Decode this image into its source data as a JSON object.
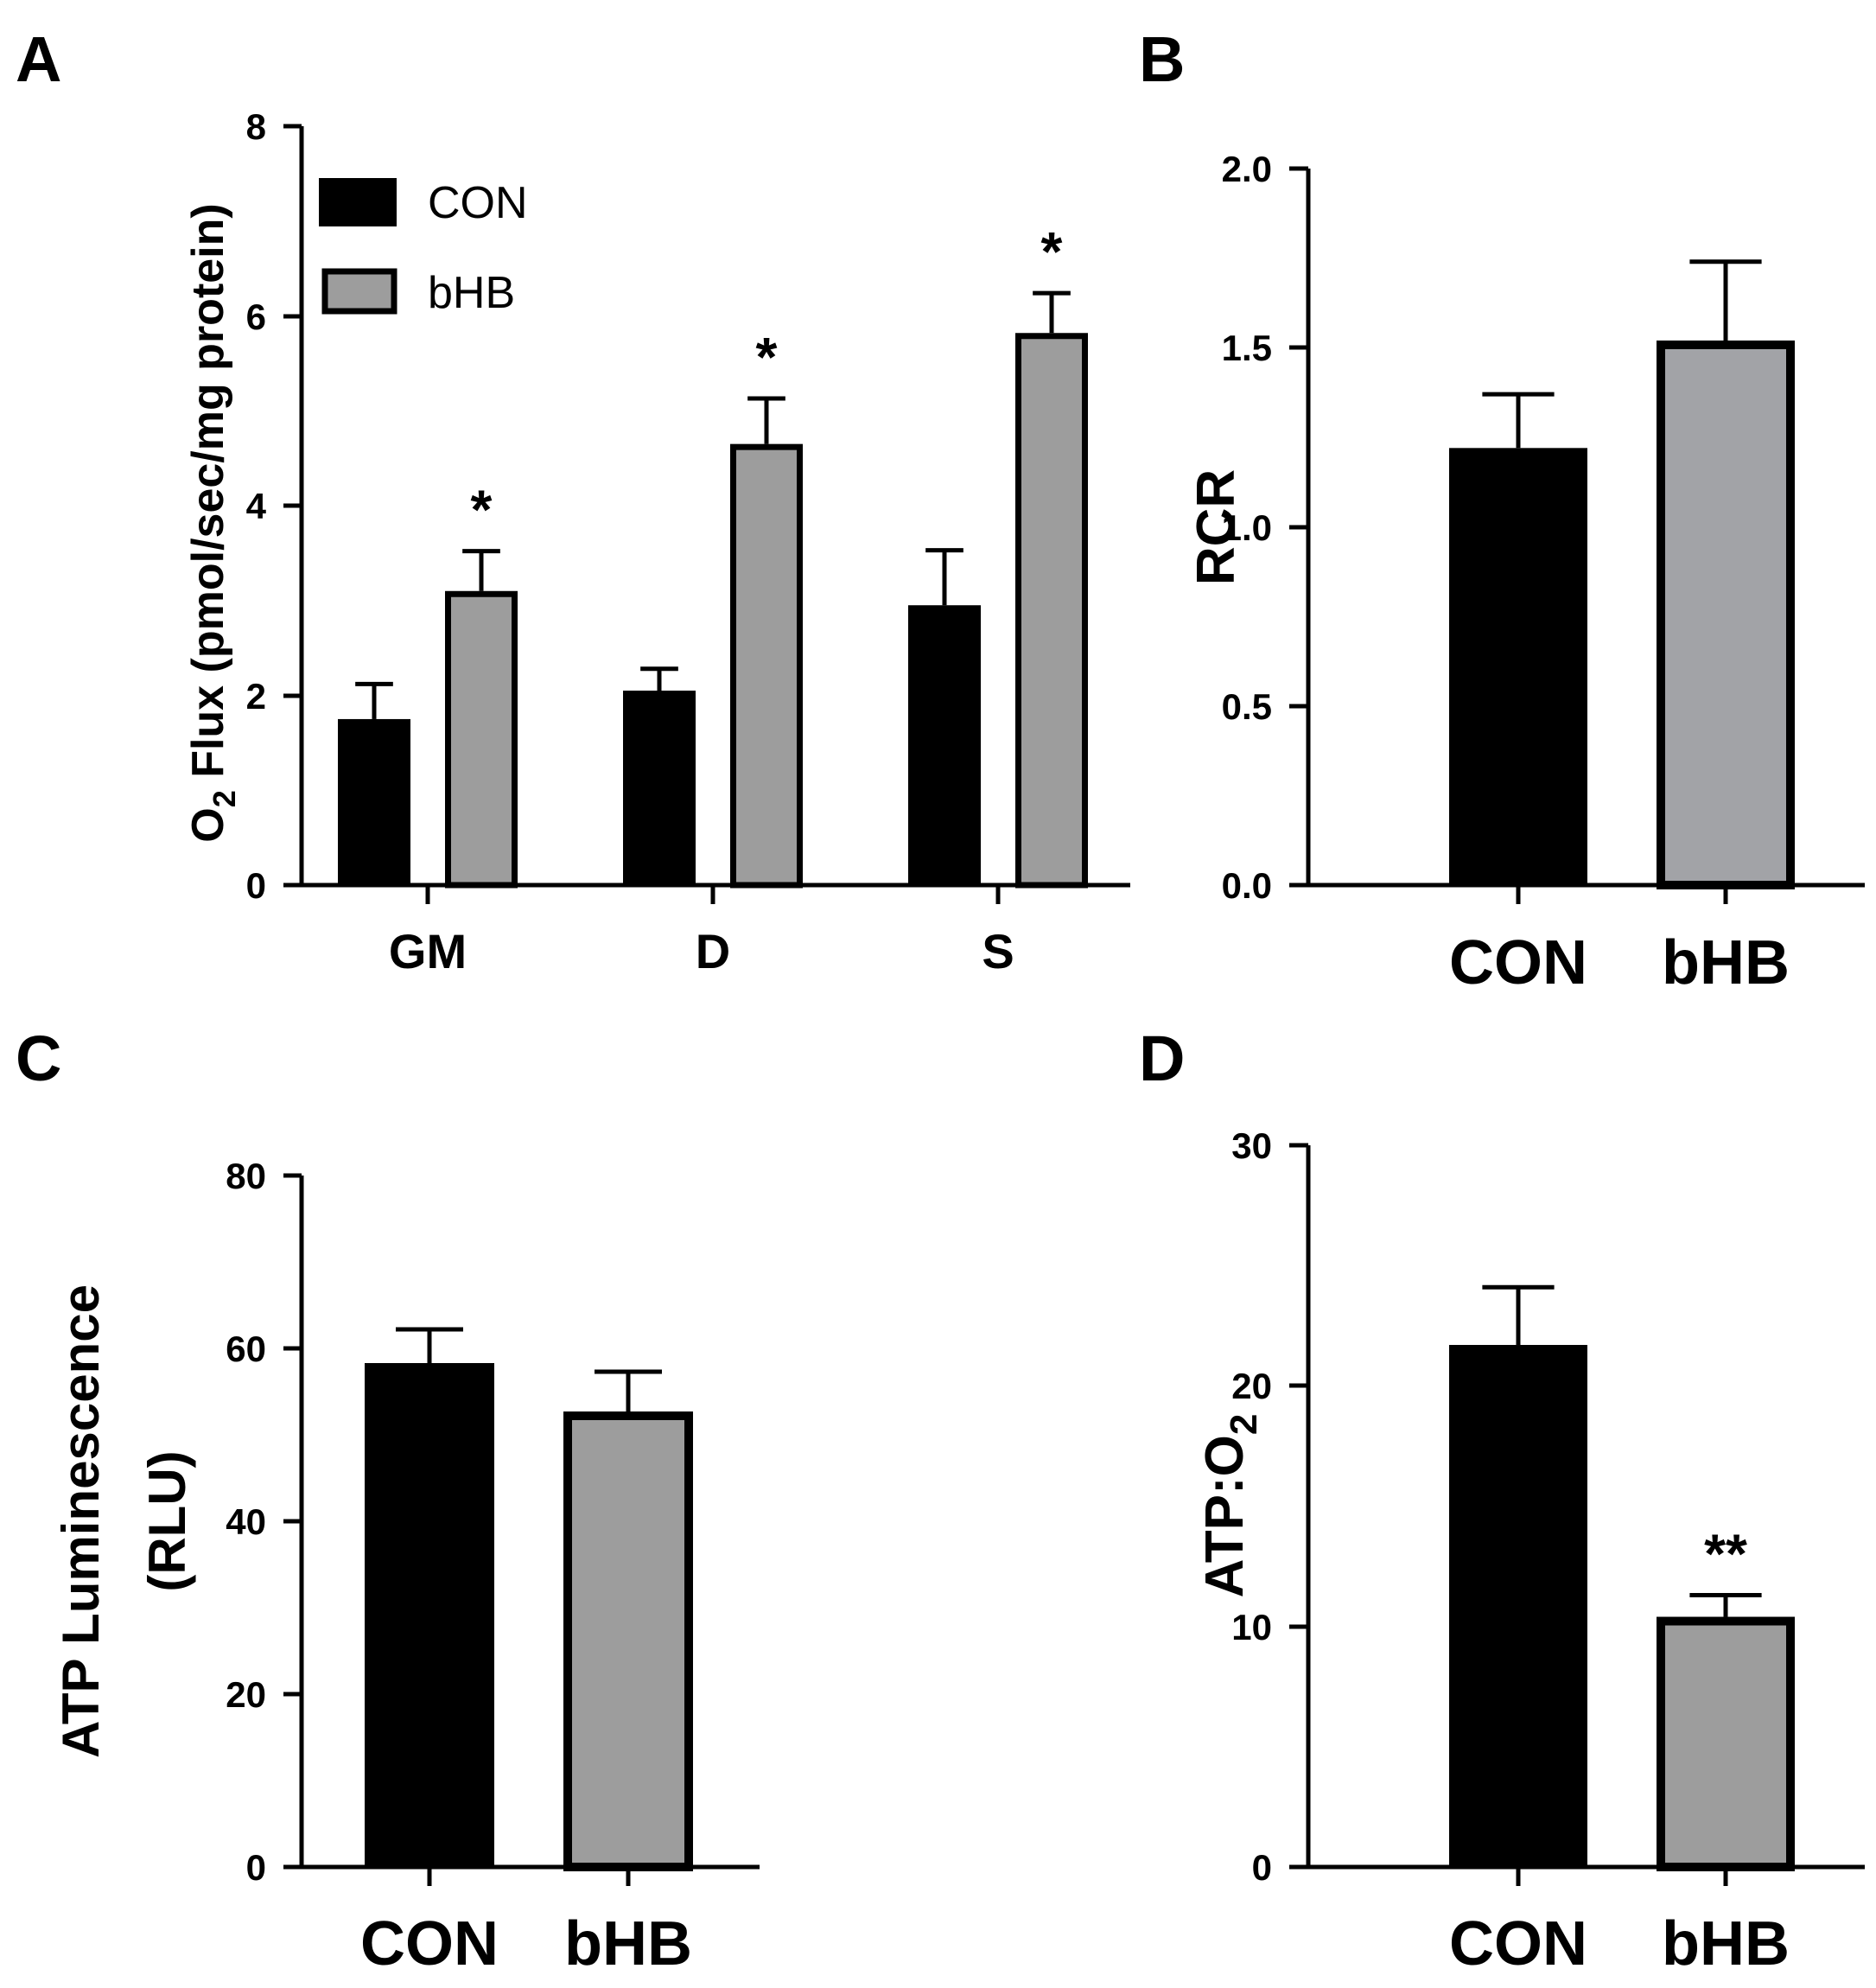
{
  "colors": {
    "con": "#000000",
    "bhb": "#9d9d9d",
    "bhb_b": "#a2a3a7",
    "axis": "#000000"
  },
  "chart_data": [
    {
      "panel": "A",
      "type": "bar",
      "categories": [
        "GM",
        "D",
        "S"
      ],
      "series": [
        {
          "name": "CON",
          "values": [
            1.75,
            2.05,
            2.95
          ],
          "errors": [
            0.37,
            0.23,
            0.58
          ],
          "sig": [
            "",
            "",
            ""
          ]
        },
        {
          "name": "bHB",
          "values": [
            3.1,
            4.65,
            5.82
          ],
          "errors": [
            0.42,
            0.48,
            0.42
          ],
          "sig": [
            "*",
            "*",
            "*"
          ]
        }
      ],
      "ylabel_main": "O",
      "ylabel_sub": "2",
      "ylabel_rest": " Flux (pmol/sec/mg protein)",
      "ylim": [
        0,
        8
      ],
      "yticks": [
        "0",
        "2",
        "4",
        "6",
        "8"
      ],
      "legend": [
        "CON",
        "bHB"
      ],
      "legend_position": "top-left"
    },
    {
      "panel": "B",
      "type": "bar",
      "categories": [
        "CON",
        "bHB"
      ],
      "values": [
        1.22,
        1.52
      ],
      "errors": [
        0.15,
        0.22
      ],
      "sig": [
        "",
        ""
      ],
      "ylabel": "RCR",
      "ylim": [
        0,
        2.0
      ],
      "yticks": [
        "0.0",
        "0.5",
        "1.0",
        "1.5",
        "2.0"
      ]
    },
    {
      "panel": "C",
      "type": "bar",
      "categories": [
        "CON",
        "bHB"
      ],
      "values": [
        58.3,
        52.7
      ],
      "errors": [
        3.9,
        4.6
      ],
      "sig": [
        "",
        ""
      ],
      "ylabel_line1": "ATP Luminescence",
      "ylabel_line2": "(RLU)",
      "ylim": [
        0,
        80
      ],
      "yticks": [
        "0",
        "20",
        "40",
        "60",
        "80"
      ]
    },
    {
      "panel": "D",
      "type": "bar",
      "categories": [
        "CON",
        "bHB"
      ],
      "values": [
        21.7,
        10.4
      ],
      "errors": [
        2.4,
        0.9
      ],
      "sig": [
        "",
        "**"
      ],
      "ylabel_main": "ATP:O",
      "ylabel_sub": "2",
      "ylim": [
        0,
        30
      ],
      "yticks": [
        "0",
        "10",
        "20",
        "30"
      ]
    }
  ]
}
